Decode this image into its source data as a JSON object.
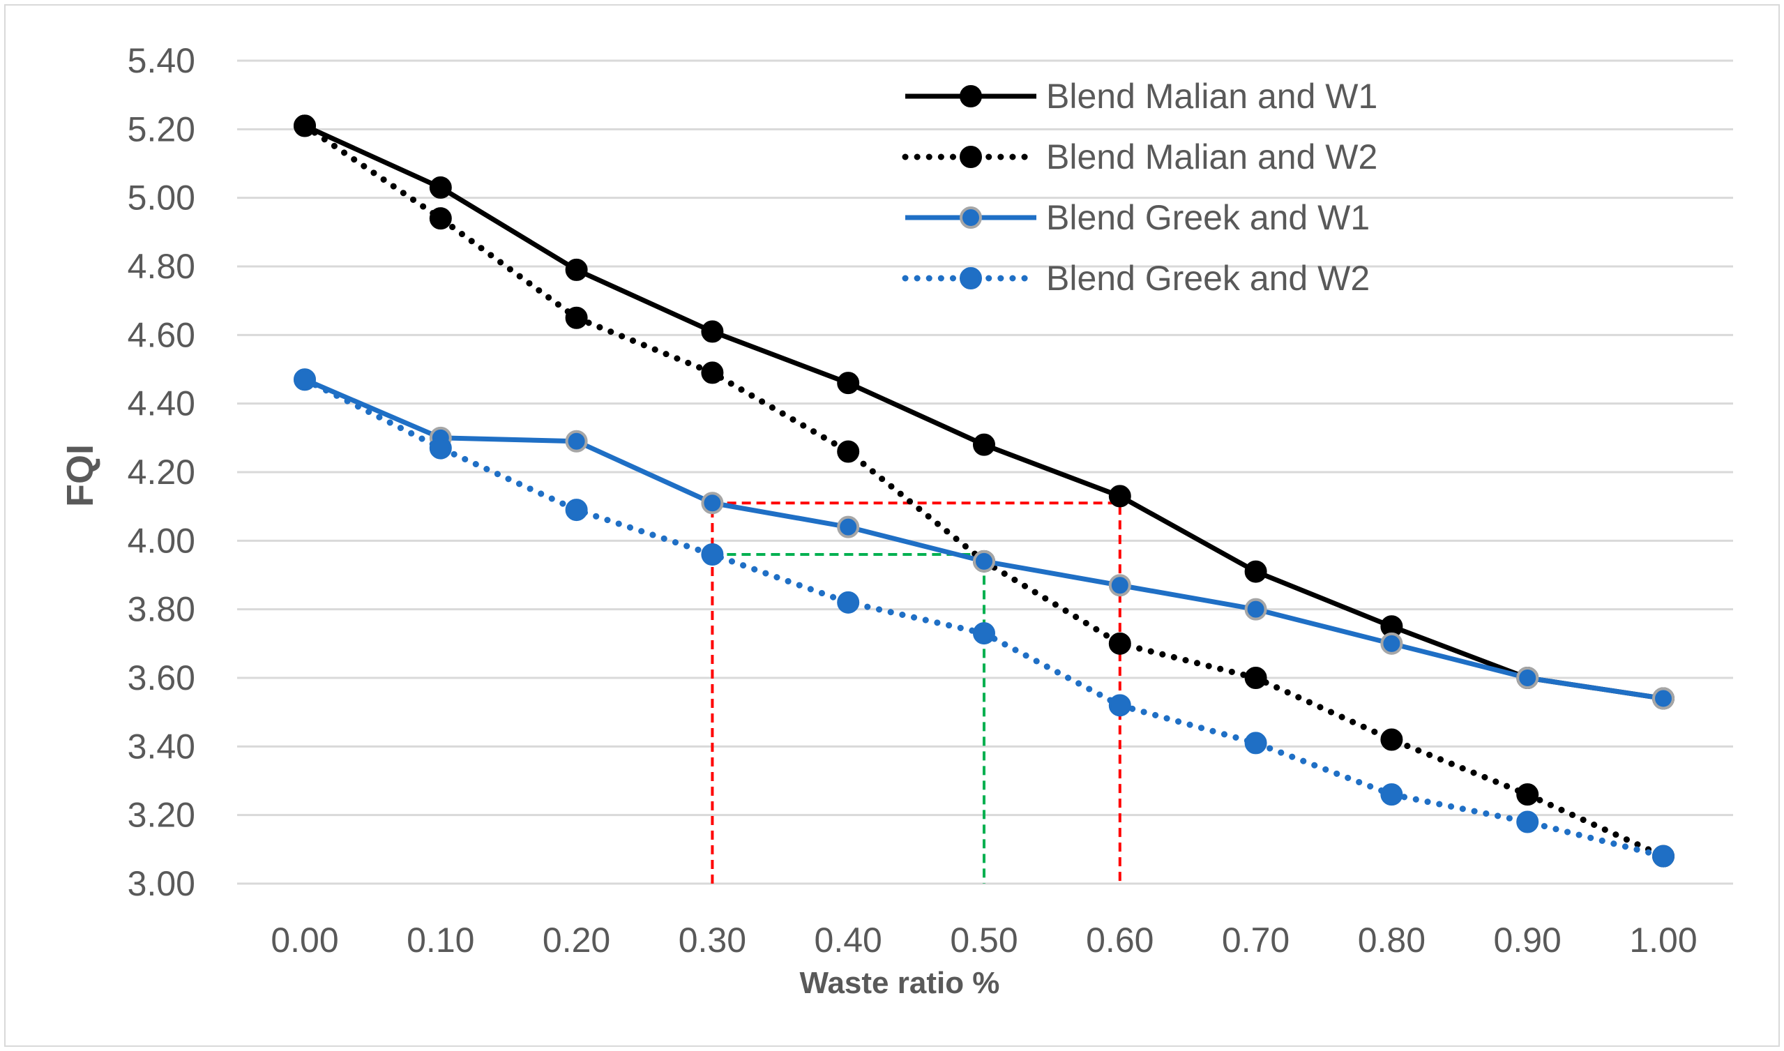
{
  "chart_data": {
    "type": "line",
    "title": "",
    "xlabel": "Waste ratio %",
    "ylabel": "FQI",
    "x": [
      0.0,
      0.1,
      0.2,
      0.3,
      0.4,
      0.5,
      0.6,
      0.7,
      0.8,
      0.9,
      1.0
    ],
    "x_tick_labels": [
      "0.00",
      "0.10",
      "0.20",
      "0.30",
      "0.40",
      "0.50",
      "0.60",
      "0.70",
      "0.80",
      "0.90",
      "1.00"
    ],
    "ylim": [
      3.0,
      5.4
    ],
    "y_ticks": [
      3.0,
      3.2,
      3.4,
      3.6,
      3.8,
      4.0,
      4.2,
      4.4,
      4.6,
      4.8,
      5.0,
      5.2,
      5.4
    ],
    "y_tick_labels": [
      "3.00",
      "3.20",
      "3.40",
      "3.60",
      "3.80",
      "4.00",
      "4.20",
      "4.40",
      "4.60",
      "4.80",
      "5.00",
      "5.20",
      "5.40"
    ],
    "grid": true,
    "legend_position": "top-right",
    "series": [
      {
        "name": "Blend Malian and W1",
        "style": "solid",
        "color": "#000000",
        "marker_fill": "#000000",
        "marker_edge": "#000000",
        "values": [
          5.21,
          5.03,
          4.79,
          4.61,
          4.46,
          4.28,
          4.13,
          3.91,
          3.75,
          3.6,
          3.54
        ]
      },
      {
        "name": "Blend Malian and W2",
        "style": "dotted",
        "color": "#000000",
        "marker_fill": "#000000",
        "marker_edge": "#000000",
        "values": [
          5.21,
          4.94,
          4.65,
          4.49,
          4.26,
          3.94,
          3.7,
          3.6,
          3.42,
          3.26,
          3.08
        ]
      },
      {
        "name": "Blend Greek and W1",
        "style": "solid",
        "color": "#1f6fc5",
        "marker_fill": "#1f6fc5",
        "marker_edge": "#a6a6a6",
        "values": [
          4.47,
          4.3,
          4.29,
          4.11,
          4.04,
          3.94,
          3.87,
          3.8,
          3.7,
          3.6,
          3.54
        ]
      },
      {
        "name": "Blend Greek and W2",
        "style": "dotted",
        "color": "#1f6fc5",
        "marker_fill": "#1f6fc5",
        "marker_edge": "#1f6fc5",
        "values": [
          4.47,
          4.27,
          4.09,
          3.96,
          3.82,
          3.73,
          3.52,
          3.41,
          3.26,
          3.18,
          3.08
        ]
      }
    ],
    "annotations": [
      {
        "name": "red-guide",
        "color": "#ff0000",
        "path": [
          [
            0.3,
            3.0
          ],
          [
            0.3,
            4.11
          ],
          [
            0.6,
            4.11
          ],
          [
            0.6,
            3.0
          ]
        ]
      },
      {
        "name": "green-guide",
        "color": "#00b050",
        "path": [
          [
            0.3,
            3.96
          ],
          [
            0.5,
            3.96
          ],
          [
            0.5,
            3.0
          ]
        ]
      }
    ]
  }
}
